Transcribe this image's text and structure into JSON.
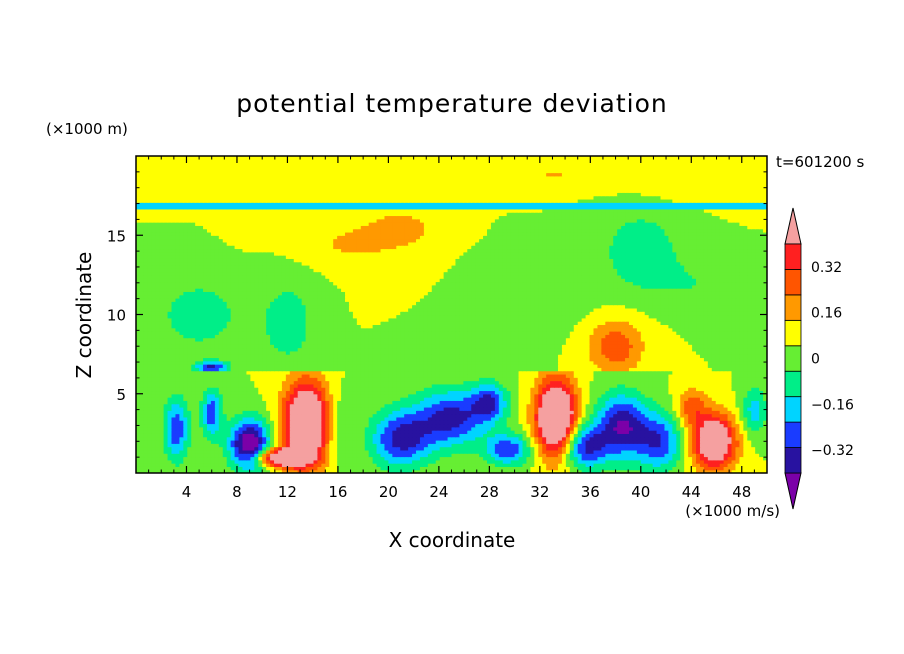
{
  "chart_data": {
    "type": "heatmap",
    "title": "potential temperature deviation",
    "xlabel": "X coordinate",
    "ylabel": "Z coordinate",
    "x_unit": "(×1000 m/s)",
    "y_unit": "(×1000 m)",
    "time_label": "t=601200 s",
    "xlim": [
      0,
      50
    ],
    "ylim": [
      0,
      20
    ],
    "x_ticks": [
      4,
      8,
      12,
      16,
      20,
      24,
      28,
      32,
      36,
      40,
      44,
      48
    ],
    "y_ticks": [
      5,
      10,
      15
    ],
    "colorbar": {
      "levels": [
        -0.4,
        -0.32,
        -0.24,
        -0.16,
        -0.08,
        0,
        0.08,
        0.16,
        0.24,
        0.32,
        0.4
      ],
      "labels": [
        "0.32",
        "0.16",
        "0",
        "−0.16",
        "−0.32"
      ],
      "label_values": [
        0.32,
        0.16,
        0,
        -0.16,
        -0.32
      ],
      "colors": [
        "#7b00a8",
        "#2812a0",
        "#1a3cff",
        "#00d4ff",
        "#00ee88",
        "#66ee33",
        "#ffff00",
        "#ff9900",
        "#ff5500",
        "#ff2020",
        "#f5a0a0"
      ]
    }
  }
}
